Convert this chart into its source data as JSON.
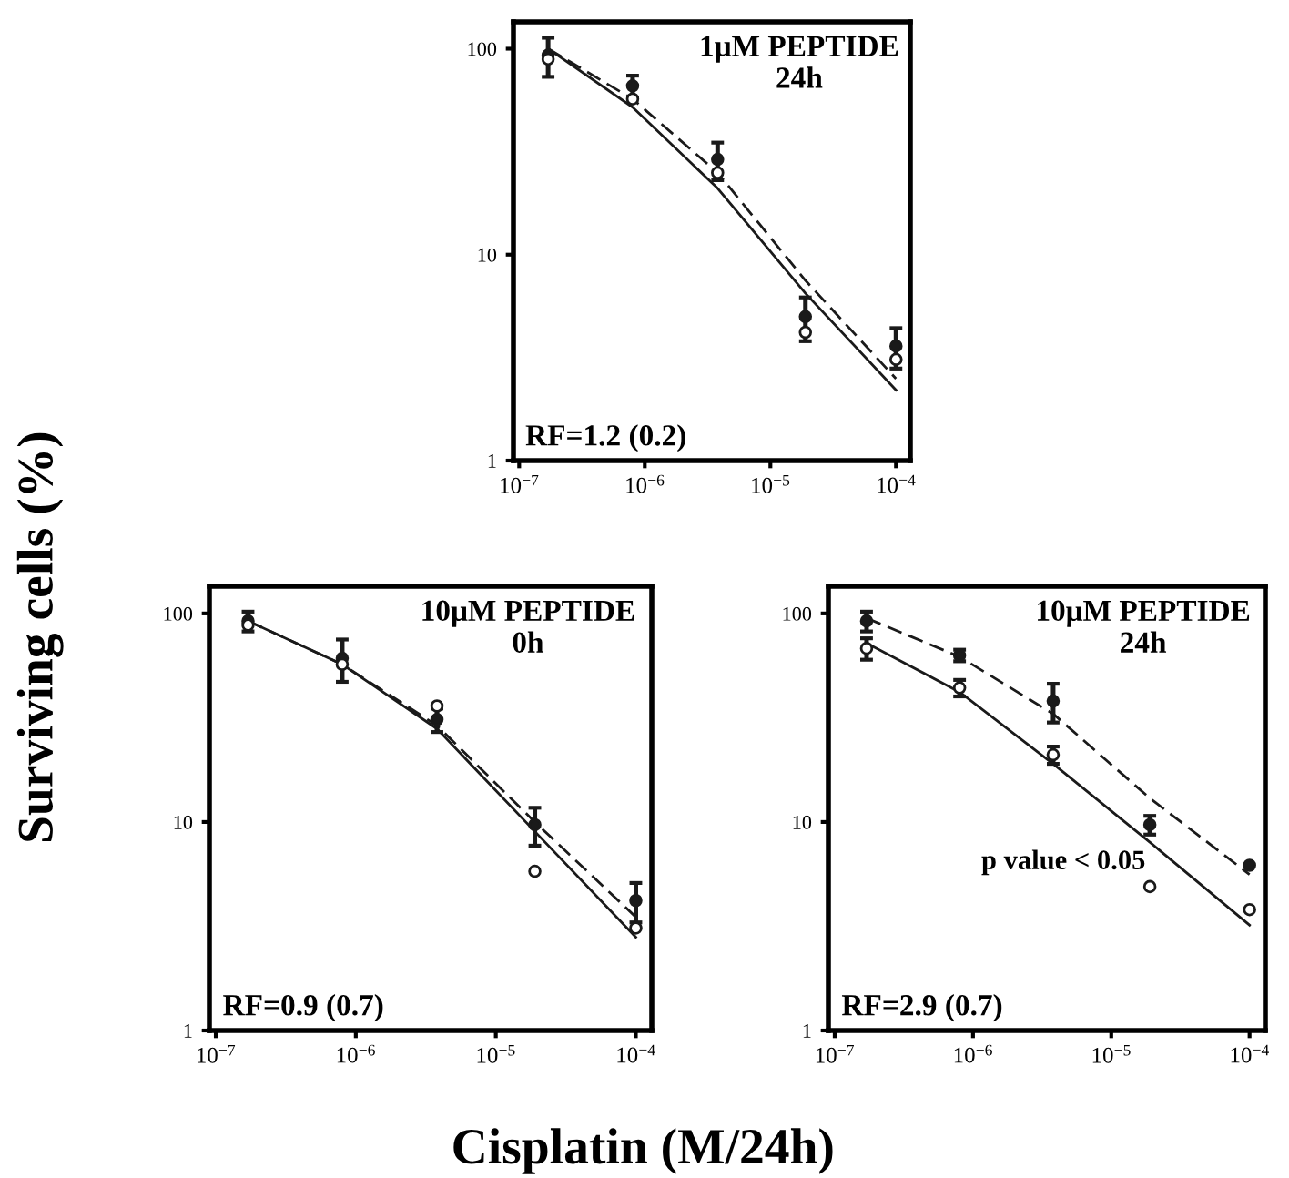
{
  "chart_data": [
    {
      "type": "scatter",
      "title": "1μM PEPTIDE\n24h",
      "annotations": [
        "RF=1.2 (0.2)"
      ],
      "log": "xy",
      "xlim": [
        9e-08,
        0.00013
      ],
      "ylim": [
        1,
        135
      ],
      "xticks": [
        {
          "value": 1e-07,
          "label": "10$^{−7}$"
        },
        {
          "value": 1e-06,
          "label": "10$^{−6}$"
        },
        {
          "value": 1e-05,
          "label": "10$^{−5}$"
        },
        {
          "value": 0.0001,
          "label": "10$^{−4}$"
        }
      ],
      "yticks": [
        1,
        10,
        100
      ],
      "grid": false,
      "legend": false,
      "series": [
        {
          "marker": "circle",
          "color": "#1a1a1a",
          "x": [
            1.7e-07,
            8e-07,
            3.8e-06,
            1.9e-05,
            0.0001
          ],
          "values": [
            93,
            66,
            29,
            5.0,
            3.6
          ],
          "errors": [
            20,
            8,
            6,
            1.2,
            0.8
          ]
        },
        {
          "marker": "circle",
          "color": "#ffffff",
          "x": [
            1.7e-07,
            8e-07,
            3.8e-06,
            1.9e-05,
            0.0001
          ],
          "values": [
            89,
            57,
            25,
            4.2,
            3.1
          ]
        },
        {
          "type": "line",
          "line_style": "solid",
          "color": "#1a1a1a",
          "x": [
            1.7e-07,
            8e-07,
            3.8e-06,
            1.9e-05,
            0.0001
          ],
          "values": [
            100,
            52,
            21,
            6.5,
            2.2
          ]
        },
        {
          "type": "line",
          "line_style": "dashed",
          "color": "#1a1a1a",
          "x": [
            1.7e-07,
            8e-07,
            3.8e-06,
            1.9e-05,
            0.0001
          ],
          "values": [
            100,
            57,
            25,
            7.5,
            2.5
          ]
        }
      ]
    },
    {
      "type": "scatter",
      "title": "10μM PEPTIDE\n0h",
      "ylabel": "Surviving cells (%)",
      "xlabel": "Cisplatin (M/24h)",
      "annotations": [
        "RF=0.9 (0.7)"
      ],
      "log": "xy",
      "xlim": [
        9e-08,
        0.00013
      ],
      "ylim": [
        1,
        135
      ],
      "xticks": [
        {
          "value": 1e-07,
          "label": "10$^{−7}$"
        },
        {
          "value": 1e-06,
          "label": "10$^{−6}$"
        },
        {
          "value": 1e-05,
          "label": "10$^{−5}$"
        },
        {
          "value": 0.0001,
          "label": "10$^{−4}$"
        }
      ],
      "yticks": [
        1,
        10,
        100
      ],
      "grid": false,
      "legend": false,
      "series": [
        {
          "marker": "circle",
          "color": "#1a1a1a",
          "x": [
            1.7e-07,
            8e-07,
            3.8e-06,
            1.9e-05,
            0.0001
          ],
          "values": [
            92,
            61,
            31,
            9.7,
            4.2
          ],
          "errors": [
            10,
            14,
            4,
            2,
            0.9
          ]
        },
        {
          "marker": "circle",
          "color": "#ffffff",
          "x": [
            1.7e-07,
            8e-07,
            3.8e-06,
            1.9e-05,
            0.0001
          ],
          "values": [
            88,
            57,
            36,
            5.8,
            3.1
          ]
        },
        {
          "type": "line",
          "line_style": "solid",
          "color": "#1a1a1a",
          "x": [
            1.7e-07,
            8e-07,
            3.8e-06,
            1.9e-05,
            0.0001
          ],
          "values": [
            92,
            57,
            28,
            9,
            2.8
          ]
        },
        {
          "type": "line",
          "line_style": "dashed",
          "color": "#1a1a1a",
          "x": [
            1.7e-07,
            8e-07,
            3.8e-06,
            1.9e-05,
            0.0001
          ],
          "values": [
            92,
            57,
            29,
            10,
            3.5
          ]
        }
      ]
    },
    {
      "type": "scatter",
      "title": "10μM PEPTIDE\n24h",
      "annotations": [
        "p value < 0.05",
        "RF=2.9 (0.7)"
      ],
      "log": "xy",
      "xlim": [
        9e-08,
        0.00013
      ],
      "ylim": [
        1,
        135
      ],
      "xticks": [
        {
          "value": 1e-07,
          "label": "10$^{−7}$"
        },
        {
          "value": 1e-06,
          "label": "10$^{−6}$"
        },
        {
          "value": 1e-05,
          "label": "10$^{−5}$"
        },
        {
          "value": 0.0001,
          "label": "10$^{−4}$"
        }
      ],
      "yticks": [
        1,
        10,
        100
      ],
      "grid": false,
      "legend": false,
      "series": [
        {
          "marker": "circle",
          "color": "#1a1a1a",
          "x": [
            1.7e-07,
            8e-07,
            3.8e-06,
            1.9e-05,
            0.0001
          ],
          "values": [
            92,
            63,
            38,
            9.7,
            6.2
          ],
          "errors": [
            10,
            4,
            8,
            1,
            null
          ]
        },
        {
          "marker": "circle",
          "color": "#ffffff",
          "x": [
            1.7e-07,
            8e-07,
            3.8e-06,
            1.9e-05,
            0.0001
          ],
          "values": [
            68,
            44,
            21,
            4.9,
            3.8
          ],
          "errors": [
            8,
            4,
            2,
            null,
            null
          ]
        },
        {
          "type": "line",
          "line_style": "solid",
          "color": "#1a1a1a",
          "x": [
            1.7e-07,
            8e-07,
            3.8e-06,
            1.9e-05,
            0.0001
          ],
          "values": [
            72,
            42,
            19,
            8,
            3.2
          ]
        },
        {
          "type": "line",
          "line_style": "dashed",
          "color": "#1a1a1a",
          "x": [
            1.7e-07,
            8e-07,
            3.8e-06,
            1.9e-05,
            0.0001
          ],
          "values": [
            95,
            62,
            33,
            13,
            5.6
          ]
        }
      ]
    }
  ]
}
